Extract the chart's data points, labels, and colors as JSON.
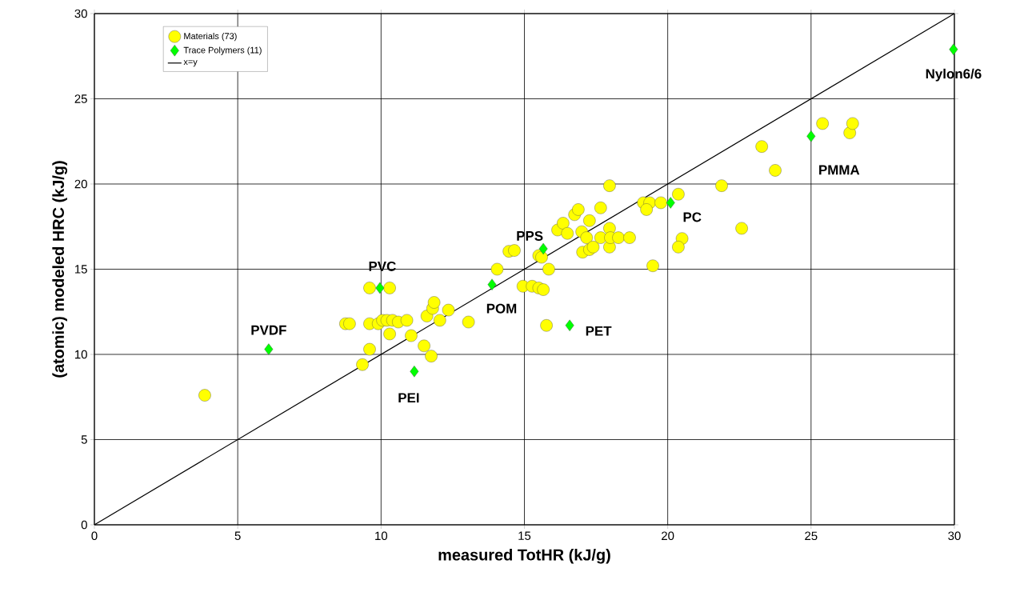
{
  "chart_data": {
    "type": "scatter",
    "xlabel": "measured TotHR (kJ/g)",
    "ylabel": "(atomic) modeled HRC (kJ/g)",
    "xlim": [
      0,
      30
    ],
    "ylim": [
      0,
      30
    ],
    "xticks": [
      0,
      5,
      10,
      15,
      20,
      25,
      30
    ],
    "yticks": [
      0,
      5,
      10,
      15,
      20,
      25,
      30
    ],
    "grid": true,
    "legend": "top left",
    "series": [
      {
        "name": "Materials (73)",
        "color": "#ffff00",
        "marker": "circle",
        "x": [
          3.85,
          8.76,
          8.9,
          9.6,
          10.3,
          9.6,
          9.9,
          10.05,
          10.2,
          10.4,
          10.6,
          10.9,
          9.6,
          10.3,
          9.35,
          11.05,
          11.5,
          11.75,
          11.6,
          11.8,
          11.85,
          12.05,
          12.35,
          13.05,
          14.05,
          14.95,
          15.27,
          15.5,
          15.66,
          15.85,
          15.77,
          14.46,
          14.65,
          15.5,
          15.6,
          16.16,
          16.35,
          16.5,
          16.75,
          16.88,
          17.0,
          17.17,
          17.03,
          17.27,
          17.4,
          17.27,
          17.66,
          17.66,
          17.97,
          17.97,
          17.97,
          18.0,
          18.28,
          18.67,
          19.15,
          19.37,
          19.26,
          19.76,
          19.48,
          20.37,
          20.5,
          20.37,
          21.88,
          22.58,
          23.75,
          23.28,
          25.4,
          26.35,
          26.45
        ],
        "values": [
          7.6,
          11.8,
          11.8,
          13.9,
          13.9,
          11.8,
          11.8,
          12.0,
          12.0,
          12.0,
          11.9,
          12.0,
          10.3,
          11.2,
          9.4,
          11.1,
          10.5,
          9.9,
          12.25,
          12.7,
          13.05,
          12.0,
          12.6,
          11.9,
          15.0,
          14.0,
          14.0,
          13.9,
          13.8,
          15.0,
          11.7,
          16.05,
          16.1,
          15.8,
          15.7,
          17.3,
          17.7,
          17.1,
          18.2,
          18.5,
          17.2,
          16.85,
          16.0,
          16.15,
          16.3,
          17.85,
          18.6,
          16.85,
          19.9,
          17.4,
          16.3,
          16.85,
          16.85,
          16.85,
          18.9,
          18.9,
          18.5,
          18.9,
          15.2,
          19.4,
          16.8,
          16.3,
          19.9,
          17.4,
          20.8,
          22.2,
          23.55,
          23.0,
          23.55
        ]
      },
      {
        "name": "Trace Polymers (11)",
        "color": "#00ff00",
        "marker": "diamond",
        "x": [
          6.08,
          11.16,
          9.96,
          13.87,
          15.66,
          16.58,
          20.1,
          25.0,
          29.97
        ],
        "values": [
          10.3,
          9.0,
          13.9,
          14.1,
          16.2,
          11.7,
          18.9,
          22.8,
          27.9
        ]
      },
      {
        "name": "x=y",
        "type": "line",
        "color": "#000000",
        "marker": "none",
        "line_style": "solid",
        "x": [
          0,
          30
        ],
        "values": [
          0,
          30
        ]
      }
    ],
    "annotations": [
      {
        "text": "PVDF",
        "x": 6.08,
        "y": 10.3
      },
      {
        "text": "PVC",
        "x": 9.96,
        "y": 13.9
      },
      {
        "text": "POM",
        "x": 13.87,
        "y": 14.1
      },
      {
        "text": "PPS",
        "x": 15.66,
        "y": 16.2
      },
      {
        "text": "PEI",
        "x": 11.16,
        "y": 9.0
      },
      {
        "text": "PET",
        "x": 16.58,
        "y": 11.7
      },
      {
        "text": "PC",
        "x": 20.1,
        "y": 18.9
      },
      {
        "text": "PMMA",
        "x": 25.0,
        "y": 22.8
      },
      {
        "text": "Nylon6/6",
        "x": 29.97,
        "y": 27.9
      }
    ]
  }
}
